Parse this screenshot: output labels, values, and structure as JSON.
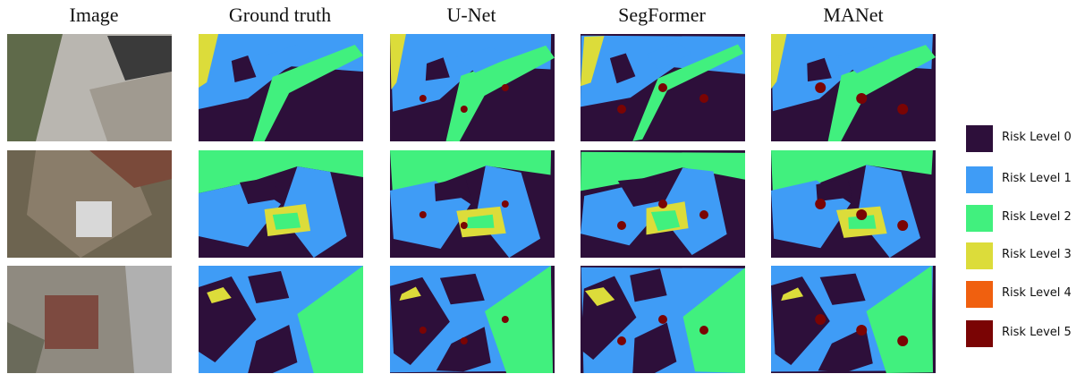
{
  "columns": [
    "Image",
    "Ground truth",
    "U-Net",
    "SegFormer",
    "MANet"
  ],
  "legend": [
    {
      "label": "Risk Level 0",
      "color": "#2d0f3a"
    },
    {
      "label": "Risk Level 1",
      "color": "#3f9cf6"
    },
    {
      "label": "Risk Level 2",
      "color": "#41f07e"
    },
    {
      "label": "Risk Level 3",
      "color": "#dcdc3a"
    },
    {
      "label": "Risk Level 4",
      "color": "#f0600f"
    },
    {
      "label": "Risk Level 5",
      "color": "#7a0404"
    }
  ]
}
